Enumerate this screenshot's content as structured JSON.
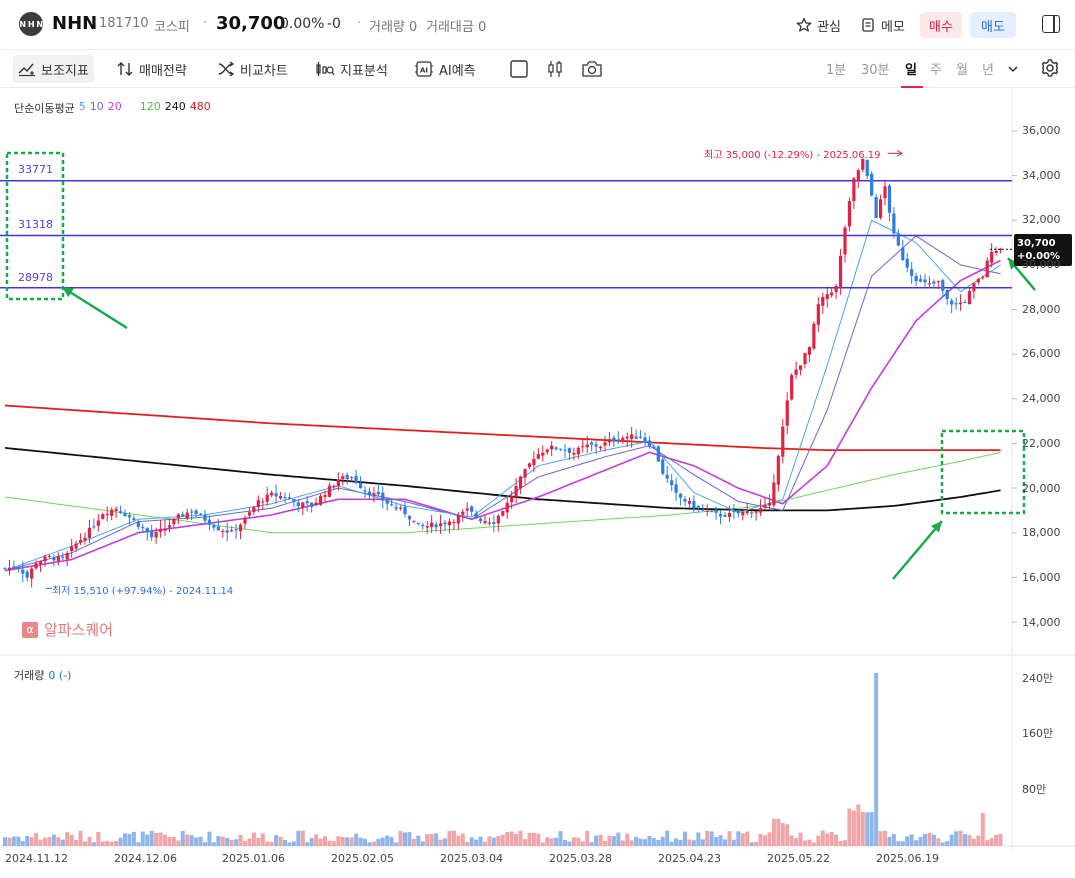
{
  "header": {
    "logo_text": "N H N",
    "name": "NHN",
    "code": "181710",
    "market": "코스피",
    "price": "30,700",
    "change_pct": "0.00%",
    "change_abs": "-0",
    "volume": "거래량 0",
    "amount": "거래대금 0",
    "watch_label": "관심",
    "memo_label": "메모",
    "buy_label": "매수",
    "sell_label": "매도"
  },
  "toolbar": {
    "indicator_label": "보조지표",
    "strategy_label": "매매전략",
    "compare_label": "비교차트",
    "analysis_label": "지표분석",
    "ai_label": "AI예측",
    "periods": [
      "1분",
      "30분",
      "일",
      "주",
      "월",
      "년"
    ],
    "active_period": "일"
  },
  "legend": {
    "ma_title": "단순이동평균",
    "ma": [
      {
        "label": "5",
        "color": "#4aa8e8"
      },
      {
        "label": "10",
        "color": "#6e62d6"
      },
      {
        "label": "20",
        "color": "#c43fd6"
      },
      {
        "label": "120",
        "color": "#74d45c"
      },
      {
        "label": "240",
        "color": "#111111"
      },
      {
        "label": "480",
        "color": "#e02020"
      }
    ],
    "volume_title": "거래량",
    "volume_value": "0 (-)"
  },
  "watermark": "알파스퀘어",
  "annotations": {
    "max": "최고 35,000 (-12.29%) - 2025.06.19",
    "min": "최저 15,510 (+97.94%) - 2024.11.14",
    "price_tag_value": "30,700",
    "price_tag_change": "+0.00%",
    "levels": [
      "33771",
      "31318",
      "28978"
    ]
  },
  "chart_data": {
    "type": "candlestick",
    "title": "",
    "y_axis_ticks": [
      "36,000",
      "34,000",
      "32,000",
      "30,000",
      "28,000",
      "26,000",
      "24,000",
      "22,000",
      "20,000",
      "18,000",
      "16,000",
      "14,000"
    ],
    "ylim": [
      13000,
      37000
    ],
    "volume_axis_ticks": [
      "240만",
      "160만",
      "80만"
    ],
    "x_axis_ticks": [
      "2024.11.12",
      "2024.12.06",
      "2025.01.06",
      "2025.02.05",
      "2025.03.04",
      "2025.03.28",
      "2025.04.23",
      "2025.05.22",
      "2025.06.19"
    ],
    "horizontal_levels": [
      33771,
      31318,
      28978
    ],
    "up_color": "#e12343",
    "down_color": "#2b7de0",
    "close_path": [
      [
        0,
        16400
      ],
      [
        6,
        16500
      ],
      [
        10,
        16000
      ],
      [
        14,
        16700
      ],
      [
        20,
        16900
      ],
      [
        26,
        16800
      ],
      [
        32,
        17500
      ],
      [
        38,
        18100
      ],
      [
        44,
        18900
      ],
      [
        50,
        19100
      ],
      [
        56,
        18700
      ],
      [
        62,
        18200
      ],
      [
        66,
        17800
      ],
      [
        72,
        18200
      ],
      [
        78,
        18700
      ],
      [
        84,
        19000
      ],
      [
        90,
        18600
      ],
      [
        96,
        18200
      ],
      [
        102,
        18000
      ],
      [
        108,
        18600
      ],
      [
        114,
        19400
      ],
      [
        120,
        19700
      ],
      [
        126,
        19600
      ],
      [
        132,
        19300
      ],
      [
        138,
        19200
      ],
      [
        144,
        19800
      ],
      [
        150,
        20400
      ],
      [
        156,
        20500
      ],
      [
        162,
        19900
      ],
      [
        168,
        19600
      ],
      [
        174,
        19200
      ],
      [
        180,
        18900
      ],
      [
        186,
        18300
      ],
      [
        190,
        18300
      ],
      [
        196,
        18400
      ],
      [
        202,
        18600
      ],
      [
        208,
        19000
      ],
      [
        214,
        18600
      ],
      [
        220,
        18500
      ],
      [
        226,
        19300
      ],
      [
        232,
        20400
      ],
      [
        238,
        21400
      ],
      [
        244,
        21800
      ],
      [
        250,
        21800
      ],
      [
        256,
        21600
      ],
      [
        262,
        21900
      ],
      [
        268,
        21900
      ],
      [
        274,
        22200
      ],
      [
        280,
        22300
      ],
      [
        286,
        22300
      ],
      [
        292,
        21800
      ],
      [
        296,
        20700
      ],
      [
        302,
        19700
      ],
      [
        308,
        19300
      ],
      [
        314,
        19000
      ],
      [
        320,
        18800
      ],
      [
        326,
        18800
      ],
      [
        332,
        18900
      ],
      [
        338,
        19000
      ],
      [
        344,
        19200
      ],
      [
        350,
        22700
      ],
      [
        354,
        25000
      ],
      [
        358,
        25600
      ],
      [
        362,
        26300
      ],
      [
        366,
        28200
      ],
      [
        370,
        28700
      ],
      [
        374,
        29000
      ],
      [
        378,
        31700
      ],
      [
        382,
        33800
      ],
      [
        386,
        34700
      ],
      [
        390,
        33100
      ],
      [
        392,
        32200
      ],
      [
        396,
        33500
      ],
      [
        400,
        31300
      ],
      [
        404,
        30300
      ],
      [
        408,
        29600
      ],
      [
        412,
        29200
      ],
      [
        416,
        29100
      ],
      [
        420,
        29200
      ],
      [
        424,
        28400
      ],
      [
        428,
        28200
      ],
      [
        432,
        28400
      ],
      [
        436,
        29100
      ],
      [
        440,
        29500
      ],
      [
        444,
        30700
      ],
      [
        448,
        30700
      ]
    ],
    "ma": [
      {
        "period": 5,
        "values": [
          [
            0,
            16300
          ],
          [
            30,
            17400
          ],
          [
            60,
            18600
          ],
          [
            90,
            18800
          ],
          [
            120,
            19300
          ],
          [
            150,
            20100
          ],
          [
            180,
            19200
          ],
          [
            210,
            18700
          ],
          [
            240,
            21000
          ],
          [
            270,
            21700
          ],
          [
            290,
            22100
          ],
          [
            310,
            19800
          ],
          [
            330,
            18900
          ],
          [
            350,
            19500
          ],
          [
            370,
            25500
          ],
          [
            390,
            32000
          ],
          [
            410,
            31000
          ],
          [
            430,
            28800
          ],
          [
            448,
            30000
          ]
        ]
      },
      {
        "period": 10,
        "values": [
          [
            0,
            16300
          ],
          [
            30,
            17100
          ],
          [
            60,
            18500
          ],
          [
            90,
            18700
          ],
          [
            120,
            19100
          ],
          [
            150,
            20000
          ],
          [
            180,
            19400
          ],
          [
            210,
            18600
          ],
          [
            240,
            20500
          ],
          [
            270,
            21400
          ],
          [
            290,
            21900
          ],
          [
            310,
            20600
          ],
          [
            330,
            19400
          ],
          [
            350,
            19000
          ],
          [
            370,
            23500
          ],
          [
            390,
            29500
          ],
          [
            410,
            31300
          ],
          [
            430,
            30000
          ],
          [
            448,
            29600
          ]
        ]
      },
      {
        "period": 20,
        "values": [
          [
            0,
            16300
          ],
          [
            30,
            16800
          ],
          [
            60,
            18000
          ],
          [
            90,
            18400
          ],
          [
            120,
            18800
          ],
          [
            150,
            19500
          ],
          [
            180,
            19500
          ],
          [
            210,
            18600
          ],
          [
            240,
            19600
          ],
          [
            270,
            20800
          ],
          [
            290,
            21600
          ],
          [
            310,
            21000
          ],
          [
            330,
            20000
          ],
          [
            350,
            19300
          ],
          [
            370,
            21000
          ],
          [
            390,
            24500
          ],
          [
            410,
            27500
          ],
          [
            430,
            29300
          ],
          [
            448,
            30200
          ]
        ]
      },
      {
        "period": 120,
        "values": [
          [
            0,
            19600
          ],
          [
            60,
            18800
          ],
          [
            120,
            18000
          ],
          [
            180,
            18000
          ],
          [
            240,
            18400
          ],
          [
            300,
            18800
          ],
          [
            340,
            19200
          ],
          [
            370,
            19900
          ],
          [
            400,
            20600
          ],
          [
            430,
            21200
          ],
          [
            448,
            21600
          ]
        ]
      },
      {
        "period": 240,
        "values": [
          [
            0,
            21800
          ],
          [
            60,
            21200
          ],
          [
            120,
            20600
          ],
          [
            180,
            20100
          ],
          [
            240,
            19500
          ],
          [
            300,
            19100
          ],
          [
            340,
            19000
          ],
          [
            370,
            19000
          ],
          [
            400,
            19200
          ],
          [
            430,
            19600
          ],
          [
            448,
            19900
          ]
        ]
      },
      {
        "period": 480,
        "values": [
          [
            0,
            23700
          ],
          [
            60,
            23300
          ],
          [
            120,
            22900
          ],
          [
            180,
            22600
          ],
          [
            240,
            22300
          ],
          [
            300,
            22000
          ],
          [
            340,
            21800
          ],
          [
            370,
            21700
          ],
          [
            400,
            21700
          ],
          [
            430,
            21700
          ],
          [
            448,
            21700
          ]
        ]
      }
    ],
    "volume_max": 2400000,
    "volume_spike_ratio": 1.0
  }
}
